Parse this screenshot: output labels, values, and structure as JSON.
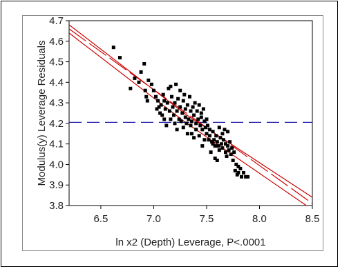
{
  "chart_data": {
    "type": "scatter",
    "xlabel": "ln x2 (Depth) Leverage, P<.0001",
    "ylabel": "Modulus(y) Leverage Residuals",
    "xlim": [
      6.2,
      8.5
    ],
    "ylim": [
      3.8,
      4.7
    ],
    "x_ticks": [
      "6.5",
      "7.0",
      "7.5",
      "8.0",
      "8.5"
    ],
    "y_ticks": [
      "3.8",
      "3.9",
      "4.0",
      "4.1",
      "4.2",
      "4.3",
      "4.4",
      "4.5",
      "4.6",
      "4.7"
    ],
    "grid": false,
    "mean_line": {
      "y": 4.205,
      "color": "#1a1aa6",
      "style": "dashed"
    },
    "fit": {
      "color": "#cc0000",
      "line": [
        [
          6.2,
          4.66
        ],
        [
          8.5,
          3.81
        ]
      ],
      "upper_band": [
        [
          6.2,
          4.68
        ],
        [
          7.3,
          4.245
        ],
        [
          8.5,
          3.84
        ]
      ],
      "lower_band": [
        [
          6.2,
          4.64
        ],
        [
          7.3,
          4.205
        ],
        [
          8.5,
          3.78
        ]
      ]
    },
    "points_color": "#000000",
    "points": [
      [
        6.62,
        4.57
      ],
      [
        6.68,
        4.52
      ],
      [
        6.78,
        4.37
      ],
      [
        6.82,
        4.42
      ],
      [
        6.86,
        4.4
      ],
      [
        6.88,
        4.45
      ],
      [
        6.91,
        4.49
      ],
      [
        6.92,
        4.36
      ],
      [
        6.93,
        4.33
      ],
      [
        6.94,
        4.31
      ],
      [
        6.95,
        4.41
      ],
      [
        6.98,
        4.39
      ],
      [
        7.0,
        4.36
      ],
      [
        7.02,
        4.33
      ],
      [
        7.03,
        4.27
      ],
      [
        7.04,
        4.31
      ],
      [
        7.05,
        4.28
      ],
      [
        7.06,
        4.25
      ],
      [
        7.07,
        4.29
      ],
      [
        7.08,
        4.24
      ],
      [
        7.09,
        4.34
      ],
      [
        7.1,
        4.31
      ],
      [
        7.1,
        4.22
      ],
      [
        7.11,
        4.27
      ],
      [
        7.12,
        4.19
      ],
      [
        7.13,
        4.3
      ],
      [
        7.14,
        4.37
      ],
      [
        7.15,
        4.26
      ],
      [
        7.16,
        4.38
      ],
      [
        7.16,
        4.22
      ],
      [
        7.17,
        4.33
      ],
      [
        7.18,
        4.28
      ],
      [
        7.19,
        4.24
      ],
      [
        7.2,
        4.3
      ],
      [
        7.2,
        4.2
      ],
      [
        7.21,
        4.39
      ],
      [
        7.22,
        4.26
      ],
      [
        7.22,
        4.17
      ],
      [
        7.23,
        4.32
      ],
      [
        7.24,
        4.22
      ],
      [
        7.25,
        4.36
      ],
      [
        7.25,
        4.28
      ],
      [
        7.26,
        4.21
      ],
      [
        7.27,
        4.25
      ],
      [
        7.28,
        4.31
      ],
      [
        7.28,
        4.18
      ],
      [
        7.29,
        4.34
      ],
      [
        7.3,
        4.23
      ],
      [
        7.3,
        4.27
      ],
      [
        7.31,
        4.2
      ],
      [
        7.32,
        4.29
      ],
      [
        7.32,
        4.15
      ],
      [
        7.33,
        4.22
      ],
      [
        7.34,
        4.33
      ],
      [
        7.35,
        4.26
      ],
      [
        7.35,
        4.19
      ],
      [
        7.36,
        4.21
      ],
      [
        7.37,
        4.28
      ],
      [
        7.38,
        4.13
      ],
      [
        7.38,
        4.24
      ],
      [
        7.39,
        4.3
      ],
      [
        7.4,
        4.2
      ],
      [
        7.4,
        4.17
      ],
      [
        7.41,
        4.26
      ],
      [
        7.42,
        4.22
      ],
      [
        7.43,
        4.29
      ],
      [
        7.43,
        4.14
      ],
      [
        7.44,
        4.19
      ],
      [
        7.45,
        4.23
      ],
      [
        7.45,
        4.25
      ],
      [
        7.46,
        4.17
      ],
      [
        7.47,
        4.27
      ],
      [
        7.48,
        4.12
      ],
      [
        7.48,
        4.21
      ],
      [
        7.49,
        4.18
      ],
      [
        7.5,
        4.15
      ],
      [
        7.5,
        4.22
      ],
      [
        7.51,
        4.19
      ],
      [
        7.52,
        4.12
      ],
      [
        7.53,
        4.17
      ],
      [
        7.53,
        4.14
      ],
      [
        7.54,
        4.06
      ],
      [
        7.55,
        4.11
      ],
      [
        7.56,
        4.16
      ],
      [
        7.57,
        4.12
      ],
      [
        7.58,
        4.09
      ],
      [
        7.58,
        4.03
      ],
      [
        7.59,
        4.14
      ],
      [
        7.6,
        4.11
      ],
      [
        7.61,
        4.09
      ],
      [
        7.62,
        4.07
      ],
      [
        7.62,
        4.18
      ],
      [
        7.63,
        4.13
      ],
      [
        7.64,
        4.1
      ],
      [
        7.65,
        4.08
      ],
      [
        7.65,
        4.15
      ],
      [
        7.66,
        4.12
      ],
      [
        7.67,
        4.17
      ],
      [
        7.68,
        4.06
      ],
      [
        7.68,
        4.1
      ],
      [
        7.69,
        4.04
      ],
      [
        7.7,
        4.09
      ],
      [
        7.7,
        4.16
      ],
      [
        7.71,
        4.07
      ],
      [
        7.72,
        4.11
      ],
      [
        7.73,
        4.05
      ],
      [
        7.74,
        4.08
      ],
      [
        7.75,
        4.02
      ],
      [
        7.76,
        4.06
      ],
      [
        7.77,
        3.97
      ],
      [
        7.78,
        4.0
      ],
      [
        7.79,
        3.95
      ],
      [
        7.8,
        3.99
      ],
      [
        7.8,
        3.96
      ],
      [
        7.82,
        3.98
      ],
      [
        7.83,
        3.94
      ],
      [
        7.85,
        3.96
      ],
      [
        7.87,
        3.94
      ],
      [
        7.89,
        3.94
      ],
      [
        7.6,
        4.02
      ],
      [
        7.56,
        4.1
      ],
      [
        7.46,
        4.09
      ],
      [
        7.36,
        4.15
      ]
    ]
  }
}
